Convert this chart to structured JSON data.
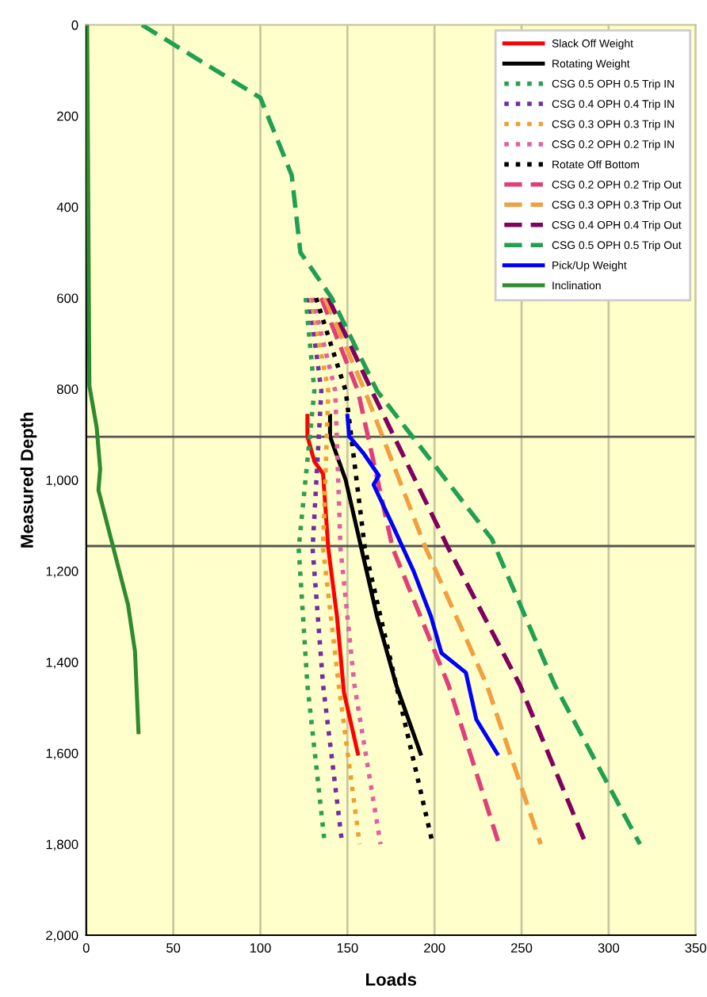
{
  "chart_data": {
    "type": "line",
    "xlabel": "Loads",
    "ylabel": "Measured Depth",
    "xlim": [
      0,
      350
    ],
    "xticks": [
      0,
      50,
      100,
      150,
      200,
      250,
      300,
      350
    ],
    "ylim": [
      2000,
      0
    ],
    "yticks": [
      0,
      200,
      400,
      600,
      800,
      {
        "value": 1000,
        "label": "1,000"
      },
      {
        "value": 1200,
        "label": "1,200"
      },
      {
        "value": 1400,
        "label": "1,400"
      },
      {
        "value": 1600,
        "label": "1,600"
      },
      {
        "value": 1800,
        "label": "1,800"
      },
      {
        "value": 2000,
        "label": "2,000"
      }
    ],
    "grid": "x",
    "legend": "top right",
    "marker": "none",
    "ref_lines": [
      {
        "axis": "y",
        "value": 905,
        "color": "#555555"
      },
      {
        "axis": "y",
        "value": 1145,
        "color": "#555555"
      }
    ],
    "series": [
      {
        "name": "Slack Off Weight",
        "color": "#ff0000",
        "line_style": "solid",
        "x": [
          127,
          127,
          131,
          136,
          139,
          144,
          148,
          156
        ],
        "values": [
          859,
          904,
          959,
          986,
          1150,
          1300,
          1467,
          1601
        ]
      },
      {
        "name": "Rotating Weight",
        "color": "#000000",
        "line_style": "solid",
        "x": [
          140,
          140,
          149,
          158,
          167,
          178,
          192
        ],
        "values": [
          859,
          904,
          1000,
          1150,
          1300,
          1450,
          1601
        ]
      },
      {
        "name": "CSG 0.5 OPH 0.5 Trip IN",
        "color": "#2e9e4f",
        "line_style": "dotted",
        "x": [
          126,
          131,
          122,
          127,
          137
        ],
        "values": [
          600,
          804,
          1150,
          1450,
          1800
        ]
      },
      {
        "name": "CSG 0.4 OPH 0.4 Trip IN",
        "color": "#7030a0",
        "line_style": "dotted",
        "x": [
          128,
          135,
          130,
          136,
          147
        ],
        "values": [
          600,
          804,
          1150,
          1450,
          1800
        ]
      },
      {
        "name": "CSG 0.3 OPH 0.3 Trip IN",
        "color": "#f0a030",
        "line_style": "dotted",
        "x": [
          129,
          139,
          136,
          145,
          157
        ],
        "values": [
          600,
          804,
          1150,
          1450,
          1800
        ]
      },
      {
        "name": "CSG 0.2 OPH 0.2 Trip IN",
        "color": "#e060a0",
        "line_style": "dotted",
        "x": [
          130,
          143,
          146,
          154,
          169
        ],
        "values": [
          600,
          804,
          1150,
          1450,
          1800
        ]
      },
      {
        "name": "Rotate Off Bottom",
        "color": "#000000",
        "line_style": "dotted",
        "x": [
          132,
          149,
          160,
          178,
          199
        ],
        "values": [
          600,
          804,
          1150,
          1450,
          1800
        ]
      },
      {
        "name": "CSG 0.2 OPH 0.2 Trip Out",
        "color": "#e0407a",
        "line_style": "dashed",
        "x": [
          135,
          156,
          176,
          208,
          237
        ],
        "values": [
          600,
          804,
          1150,
          1450,
          1800
        ]
      },
      {
        "name": "CSG 0.3 OPH 0.3 Trip Out",
        "color": "#f0a040",
        "line_style": "dashed",
        "x": [
          137,
          160,
          195,
          230,
          261
        ],
        "values": [
          600,
          804,
          1150,
          1450,
          1800
        ]
      },
      {
        "name": "CSG 0.4 OPH 0.4 Trip Out",
        "color": "#800060",
        "line_style": "dashed",
        "x": [
          139,
          164,
          208,
          249,
          287
        ],
        "values": [
          600,
          804,
          1150,
          1450,
          1800
        ]
      },
      {
        "name": "CSG 0.5 OPH 0.5 Trip Out",
        "color": "#20a050",
        "line_style": "dashed",
        "x": [
          32,
          100,
          118,
          123,
          141,
          167,
          233,
          269,
          318
        ],
        "values": [
          0,
          160,
          330,
          500,
          600,
          804,
          1130,
          1450,
          1800
        ]
      },
      {
        "name": "Pick/Up Weight",
        "color": "#0000ff",
        "line_style": "solid",
        "x": [
          150,
          151,
          159,
          168,
          165,
          176,
          188,
          198,
          204,
          218,
          224,
          236
        ],
        "values": [
          859,
          904,
          940,
          990,
          1010,
          1100,
          1200,
          1300,
          1380,
          1423,
          1526,
          1601
        ]
      },
      {
        "name": "Inclination",
        "color": "#2e8b2e",
        "line_style": "solid",
        "x": [
          0.5,
          1,
          1.8,
          6,
          8,
          7,
          24,
          28,
          30
        ],
        "values": [
          0,
          289,
          793,
          885,
          976,
          1022,
          1274,
          1377,
          1554
        ]
      }
    ]
  }
}
